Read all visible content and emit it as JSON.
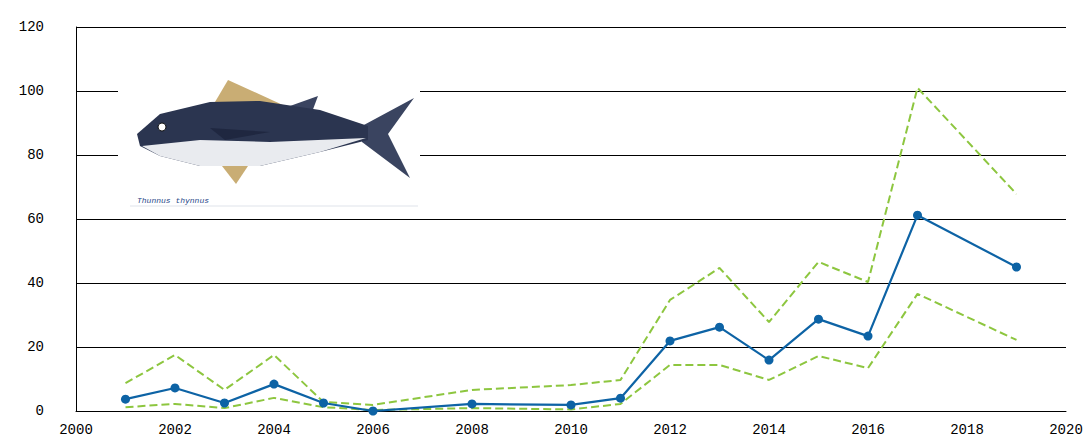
{
  "chart_data": {
    "type": "line",
    "annotation": "Thunnus thynnus",
    "x": [
      2001,
      2002,
      2003,
      2004,
      2005,
      2006,
      2008,
      2010,
      2011,
      2012,
      2013,
      2014,
      2015,
      2016,
      2017,
      2019
    ],
    "series": [
      {
        "color": "#0d63a5",
        "marker": "circle",
        "line_style": "solid",
        "values": [
          3.7,
          7.2,
          2.5,
          8.4,
          2.5,
          0,
          2.2,
          1.9,
          4,
          21.9,
          26.2,
          15.9,
          28.7,
          23.4,
          61.2,
          45
        ]
      },
      {
        "color": "#8dc63f",
        "marker": "none",
        "line_style": "dashed",
        "values": [
          8.7,
          17.5,
          6.6,
          17.5,
          2.8,
          1.9,
          6.6,
          8.1,
          9.7,
          34.7,
          44.7,
          27.8,
          46.6,
          40.3,
          101,
          67.8
        ]
      },
      {
        "color": "#8dc63f",
        "marker": "none",
        "line_style": "dashed",
        "values": [
          1.2,
          2.2,
          0.9,
          4.1,
          1.2,
          0.3,
          0.9,
          0.5,
          2.2,
          14.4,
          14.4,
          9.7,
          17.2,
          13.4,
          36.6,
          22.2
        ]
      }
    ],
    "xlim": [
      2000,
      2020
    ],
    "xticks": [
      2000,
      2002,
      2004,
      2006,
      2008,
      2010,
      2012,
      2014,
      2016,
      2018,
      2020
    ],
    "ylim": [
      0,
      120
    ],
    "yticks": [
      0,
      20,
      40,
      60,
      80,
      100,
      120
    ],
    "grid": true
  }
}
